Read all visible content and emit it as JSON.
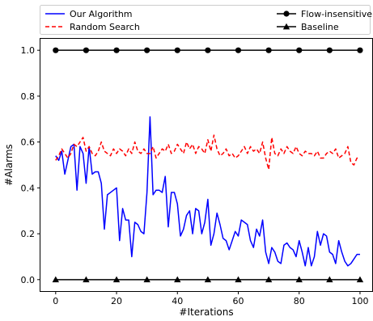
{
  "chart_data": {
    "type": "line",
    "title": "",
    "xlabel": "#Iterations",
    "ylabel": "#Alarms",
    "xlim": [
      -5,
      104
    ],
    "ylim": [
      -0.05,
      1.05
    ],
    "xticks": [
      0,
      20,
      40,
      60,
      80,
      100
    ],
    "xtick_labels": [
      "0",
      "20",
      "40",
      "60",
      "80",
      "100"
    ],
    "yticks": [
      0.0,
      0.2,
      0.4,
      0.6,
      0.8,
      1.0
    ],
    "ytick_labels": [
      "0.0",
      "0.2",
      "0.4",
      "0.6",
      "0.8",
      "1.0"
    ],
    "grid": false,
    "legend_position": "top",
    "x": [
      0,
      1,
      2,
      3,
      4,
      5,
      6,
      7,
      8,
      9,
      10,
      11,
      12,
      13,
      14,
      15,
      16,
      17,
      18,
      19,
      20,
      21,
      22,
      23,
      24,
      25,
      26,
      27,
      28,
      29,
      30,
      31,
      32,
      33,
      34,
      35,
      36,
      37,
      38,
      39,
      40,
      41,
      42,
      43,
      44,
      45,
      46,
      47,
      48,
      49,
      50,
      51,
      52,
      53,
      54,
      55,
      56,
      57,
      58,
      59,
      60,
      61,
      62,
      63,
      64,
      65,
      66,
      67,
      68,
      69,
      70,
      71,
      72,
      73,
      74,
      75,
      76,
      77,
      78,
      79,
      80,
      81,
      82,
      83,
      84,
      85,
      86,
      87,
      88,
      89,
      90,
      91,
      92,
      93,
      94,
      95,
      96,
      97,
      98,
      99,
      100
    ],
    "series": [
      {
        "name": "Our Algorithm",
        "color": "#0000ff",
        "dash": "solid",
        "marker": "none",
        "values": [
          0.54,
          0.52,
          0.56,
          0.46,
          0.52,
          0.58,
          0.59,
          0.39,
          0.58,
          0.55,
          0.42,
          0.58,
          0.46,
          0.47,
          0.47,
          0.42,
          0.22,
          0.37,
          0.38,
          0.39,
          0.4,
          0.17,
          0.31,
          0.26,
          0.26,
          0.1,
          0.25,
          0.24,
          0.21,
          0.2,
          0.38,
          0.71,
          0.37,
          0.39,
          0.39,
          0.38,
          0.45,
          0.23,
          0.38,
          0.38,
          0.33,
          0.19,
          0.22,
          0.28,
          0.3,
          0.2,
          0.31,
          0.3,
          0.2,
          0.25,
          0.35,
          0.15,
          0.2,
          0.29,
          0.24,
          0.18,
          0.17,
          0.13,
          0.17,
          0.21,
          0.19,
          0.26,
          0.25,
          0.24,
          0.17,
          0.14,
          0.22,
          0.19,
          0.26,
          0.12,
          0.07,
          0.14,
          0.12,
          0.08,
          0.07,
          0.15,
          0.16,
          0.14,
          0.13,
          0.1,
          0.17,
          0.12,
          0.06,
          0.14,
          0.06,
          0.1,
          0.21,
          0.15,
          0.2,
          0.19,
          0.12,
          0.11,
          0.07,
          0.17,
          0.12,
          0.08,
          0.06,
          0.07,
          0.09,
          0.11,
          0.11
        ]
      },
      {
        "name": "Random Search",
        "color": "#ff0000",
        "dash": "dashed",
        "marker": "none",
        "values": [
          0.52,
          0.54,
          0.57,
          0.55,
          0.53,
          0.55,
          0.59,
          0.58,
          0.6,
          0.62,
          0.56,
          0.58,
          0.55,
          0.54,
          0.56,
          0.6,
          0.56,
          0.55,
          0.54,
          0.57,
          0.55,
          0.57,
          0.56,
          0.54,
          0.57,
          0.55,
          0.6,
          0.56,
          0.55,
          0.57,
          0.55,
          0.55,
          0.58,
          0.53,
          0.55,
          0.57,
          0.56,
          0.59,
          0.55,
          0.56,
          0.59,
          0.57,
          0.55,
          0.6,
          0.57,
          0.59,
          0.55,
          0.58,
          0.57,
          0.55,
          0.61,
          0.56,
          0.63,
          0.57,
          0.54,
          0.55,
          0.57,
          0.54,
          0.55,
          0.53,
          0.54,
          0.56,
          0.58,
          0.55,
          0.58,
          0.56,
          0.57,
          0.55,
          0.6,
          0.53,
          0.48,
          0.62,
          0.55,
          0.54,
          0.57,
          0.55,
          0.58,
          0.56,
          0.55,
          0.58,
          0.55,
          0.54,
          0.56,
          0.55,
          0.55,
          0.54,
          0.56,
          0.53,
          0.53,
          0.55,
          0.56,
          0.55,
          0.57,
          0.53,
          0.54,
          0.55,
          0.58,
          0.51,
          0.5,
          0.53,
          0.53
        ]
      },
      {
        "name": "Flow-insensitive",
        "color": "#000000",
        "dash": "solid",
        "marker": "circle",
        "marker_every": 10,
        "values": [
          1,
          1,
          1,
          1,
          1,
          1,
          1,
          1,
          1,
          1,
          1,
          1,
          1,
          1,
          1,
          1,
          1,
          1,
          1,
          1,
          1,
          1,
          1,
          1,
          1,
          1,
          1,
          1,
          1,
          1,
          1,
          1,
          1,
          1,
          1,
          1,
          1,
          1,
          1,
          1,
          1,
          1,
          1,
          1,
          1,
          1,
          1,
          1,
          1,
          1,
          1,
          1,
          1,
          1,
          1,
          1,
          1,
          1,
          1,
          1,
          1,
          1,
          1,
          1,
          1,
          1,
          1,
          1,
          1,
          1,
          1,
          1,
          1,
          1,
          1,
          1,
          1,
          1,
          1,
          1,
          1,
          1,
          1,
          1,
          1,
          1,
          1,
          1,
          1,
          1,
          1,
          1,
          1,
          1,
          1,
          1,
          1,
          1,
          1,
          1,
          1
        ]
      },
      {
        "name": "Baseline",
        "color": "#000000",
        "dash": "solid",
        "marker": "triangle",
        "marker_every": 10,
        "values": [
          0,
          0,
          0,
          0,
          0,
          0,
          0,
          0,
          0,
          0,
          0,
          0,
          0,
          0,
          0,
          0,
          0,
          0,
          0,
          0,
          0,
          0,
          0,
          0,
          0,
          0,
          0,
          0,
          0,
          0,
          0,
          0,
          0,
          0,
          0,
          0,
          0,
          0,
          0,
          0,
          0,
          0,
          0,
          0,
          0,
          0,
          0,
          0,
          0,
          0,
          0,
          0,
          0,
          0,
          0,
          0,
          0,
          0,
          0,
          0,
          0,
          0,
          0,
          0,
          0,
          0,
          0,
          0,
          0,
          0,
          0,
          0,
          0,
          0,
          0,
          0,
          0,
          0,
          0,
          0,
          0,
          0,
          0,
          0,
          0,
          0,
          0,
          0,
          0,
          0,
          0,
          0,
          0,
          0,
          0,
          0,
          0,
          0,
          0,
          0,
          0
        ]
      }
    ]
  }
}
